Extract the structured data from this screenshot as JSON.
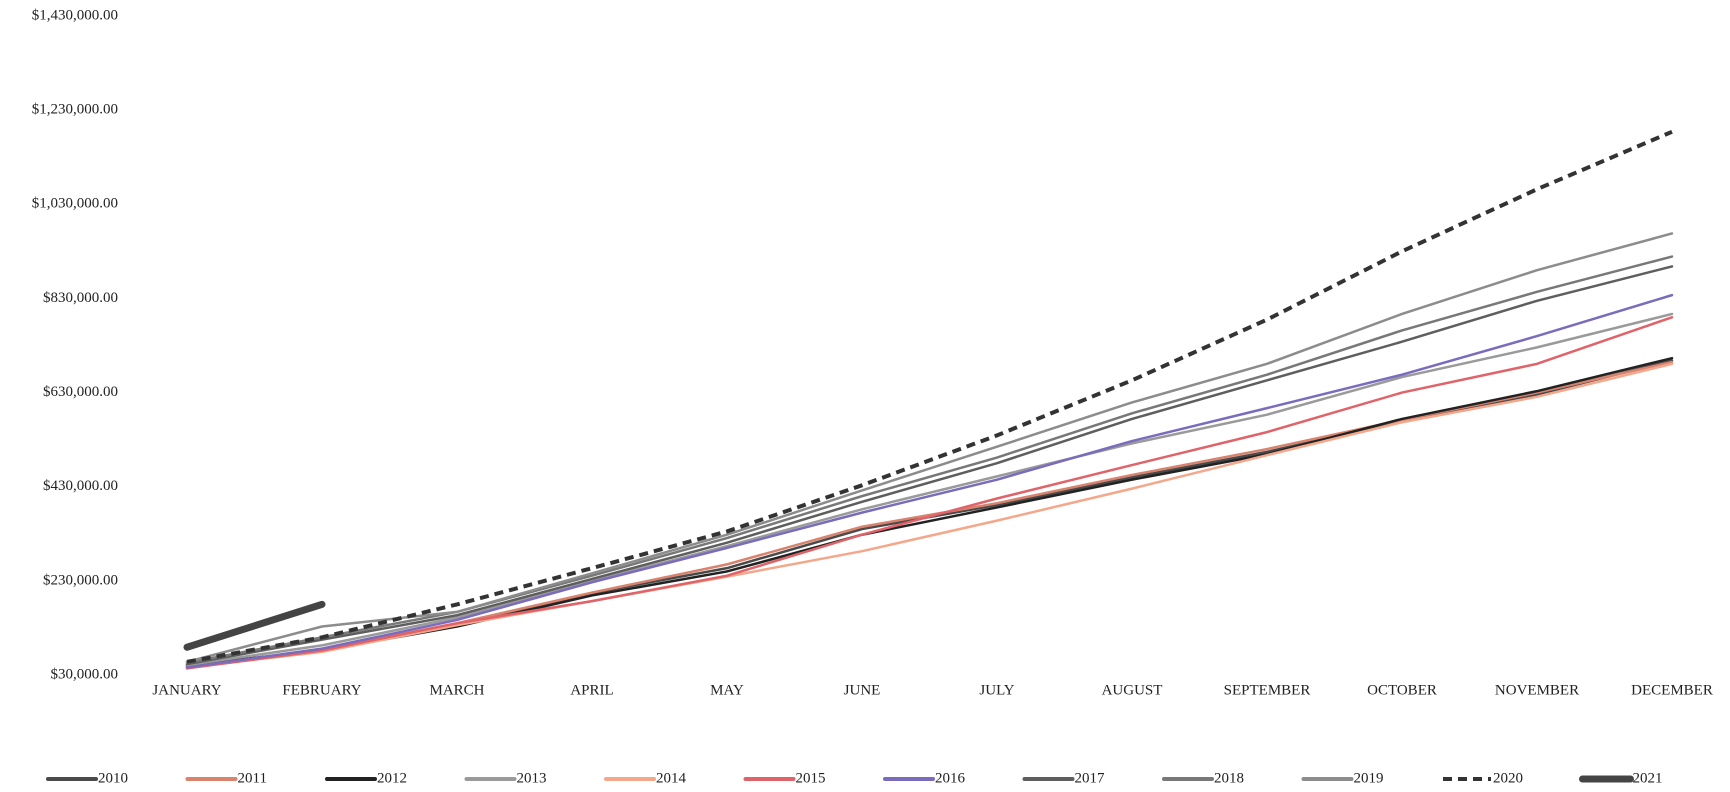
{
  "chart_data": {
    "type": "line",
    "categories": [
      "JANUARY",
      "FEBRUARY",
      "MARCH",
      "APRIL",
      "MAY",
      "JUNE",
      "JULY",
      "AUGUST",
      "SEPTEMBER",
      "OCTOBER",
      "NOVEMBER",
      "DECEMBER"
    ],
    "ylim": [
      30000,
      1430000
    ],
    "yticks": [
      {
        "value": 30000,
        "label": "$30,000.00"
      },
      {
        "value": 230000,
        "label": "$230,000.00"
      },
      {
        "value": 430000,
        "label": "$430,000.00"
      },
      {
        "value": 630000,
        "label": "$630,000.00"
      },
      {
        "value": 830000,
        "label": "$830,000.00"
      },
      {
        "value": 1030000,
        "label": "$1,030,000.00"
      },
      {
        "value": 1230000,
        "label": "$1,230,000.00"
      },
      {
        "value": 1430000,
        "label": "$1,430,000.00"
      }
    ],
    "grid": false,
    "legend": "bottom",
    "series": [
      {
        "name": "2010",
        "color": "#4a4a4a",
        "values": [
          49000,
          82000,
          138000,
          204000,
          257000,
          340000,
          391000,
          450000,
          504000,
          569000,
          626000,
          698000
        ]
      },
      {
        "name": "2011",
        "color": "#d9826e",
        "values": [
          48000,
          84000,
          140000,
          205000,
          265000,
          345000,
          395000,
          455000,
          510000,
          572000,
          630000,
          695000
        ]
      },
      {
        "name": "2012",
        "color": "#222222",
        "values": [
          51000,
          82000,
          133000,
          199000,
          250000,
          328000,
          386000,
          445000,
          499000,
          574000,
          633000,
          703000
        ]
      },
      {
        "name": "2013",
        "color": "#9a9a9a",
        "values": [
          51000,
          93000,
          152000,
          229000,
          304000,
          382000,
          452000,
          522000,
          583000,
          663000,
          726000,
          797000
        ]
      },
      {
        "name": "2014",
        "color": "#f4a78a",
        "values": [
          46000,
          79000,
          136000,
          187000,
          239000,
          293000,
          358000,
          426000,
          497000,
          567000,
          621000,
          691000
        ]
      },
      {
        "name": "2015",
        "color": "#e0636a",
        "values": [
          44000,
          82000,
          140000,
          187000,
          241000,
          328000,
          405000,
          476000,
          546000,
          630000,
          691000,
          790000
        ]
      },
      {
        "name": "2016",
        "color": "#7b6bbd",
        "values": [
          46000,
          86000,
          147000,
          227000,
          300000,
          375000,
          445000,
          527000,
          597000,
          668000,
          750000,
          837000
        ]
      },
      {
        "name": "2017",
        "color": "#5e5e5e",
        "values": [
          53000,
          105000,
          157000,
          234000,
          311000,
          398000,
          480000,
          574000,
          656000,
          738000,
          825000,
          898000
        ]
      },
      {
        "name": "2018",
        "color": "#787878",
        "values": [
          56000,
          110000,
          164000,
          241000,
          321000,
          410000,
          492000,
          586000,
          668000,
          762000,
          844000,
          919000
        ]
      },
      {
        "name": "2019",
        "color": "#8c8c8c",
        "values": [
          58000,
          133000,
          164000,
          246000,
          328000,
          422000,
          515000,
          609000,
          691000,
          797000,
          890000,
          968000
        ]
      },
      {
        "name": "2020",
        "color": "#333333",
        "dashed": true,
        "values": [
          58000,
          110000,
          180000,
          257000,
          335000,
          433000,
          539000,
          656000,
          785000,
          930000,
          1062000,
          1184000
        ]
      },
      {
        "name": "2021",
        "color": "#444444",
        "line_width": 7,
        "values": [
          89000,
          180000,
          null,
          null,
          null,
          null,
          null,
          null,
          null,
          null,
          null,
          null
        ]
      }
    ]
  }
}
